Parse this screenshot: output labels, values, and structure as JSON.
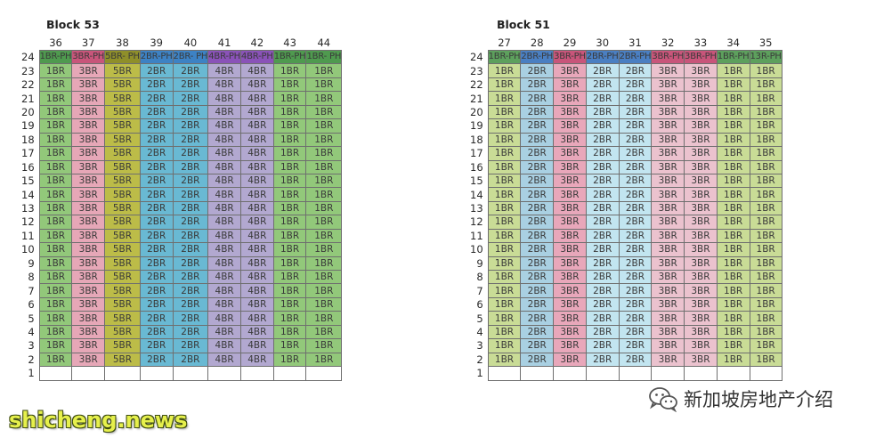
{
  "footer": {
    "site": "shicheng.news",
    "account": "新加坡房地产介绍",
    "logo_icon": "wechat-icon"
  },
  "floors": [
    24,
    23,
    22,
    21,
    20,
    19,
    18,
    17,
    16,
    15,
    14,
    13,
    12,
    11,
    10,
    9,
    8,
    7,
    6,
    5,
    4,
    3,
    2,
    1
  ],
  "blocks": [
    {
      "title": "Block 53",
      "stacks": [
        {
          "num": "36",
          "ph": "1BR-PH",
          "type": "1BR",
          "color": "#92c87a",
          "ph_color": "#4f9a4f"
        },
        {
          "num": "37",
          "ph": "3BR-PH",
          "type": "3BR",
          "color": "#e6a7b7",
          "ph_color": "#c8557a"
        },
        {
          "num": "38",
          "ph": "5BR- PH",
          "type": "5BR",
          "color": "#bcbc48",
          "ph_color": "#8f8f2a"
        },
        {
          "num": "39",
          "ph": "2BR-PH",
          "type": "2BR",
          "color": "#69b9d3",
          "ph_color": "#3d82c4"
        },
        {
          "num": "40",
          "ph": "2BR- PH",
          "type": "2BR",
          "color": "#69b9d3",
          "ph_color": "#3d82c4"
        },
        {
          "num": "41",
          "ph": "4BR-PH",
          "type": "4BR",
          "color": "#b2a8d0",
          "ph_color": "#8a52b8"
        },
        {
          "num": "42",
          "ph": "4BR-PH",
          "type": "4BR",
          "color": "#b2a8d0",
          "ph_color": "#8a52b8"
        },
        {
          "num": "43",
          "ph": "1BR-PH",
          "type": "1BR",
          "color": "#92c87a",
          "ph_color": "#4f9a4f"
        },
        {
          "num": "44",
          "ph": "1BR- PH",
          "type": "1BR",
          "color": "#92c87a",
          "ph_color": "#4f9a4f"
        }
      ]
    },
    {
      "title": "Block 51",
      "stacks": [
        {
          "num": "27",
          "ph": "1BR-PH",
          "type": "1BR",
          "color": "#c9dc96",
          "ph_color": "#5da05d"
        },
        {
          "num": "28",
          "ph": "2BR-PH",
          "type": "2BR",
          "color": "#a9d0e2",
          "ph_color": "#4a7fc2"
        },
        {
          "num": "29",
          "ph": "3BR-PH",
          "type": "3BR",
          "color": "#e8a7ba",
          "ph_color": "#c8557a"
        },
        {
          "num": "30",
          "ph": "2BR-PH",
          "type": "2BR",
          "color": "#c2e5f0",
          "ph_color": "#4a7fc2"
        },
        {
          "num": "31",
          "ph": "2BR-PH",
          "type": "2BR",
          "color": "#c2e5f0",
          "ph_color": "#4a7fc2"
        },
        {
          "num": "32",
          "ph": "3BR-PH",
          "type": "3BR",
          "color": "#ebc2ce",
          "ph_color": "#c8557a"
        },
        {
          "num": "33",
          "ph": "3BR-PH",
          "type": "3BR",
          "color": "#ebc2ce",
          "ph_color": "#c8557a"
        },
        {
          "num": "34",
          "ph": "1BR-PH",
          "type": "1BR",
          "color": "#c9dc96",
          "ph_color": "#5da05d"
        },
        {
          "num": "35",
          "ph": "13R-PH",
          "type": "1BR",
          "color": "#c9dc96",
          "ph_color": "#5da05d"
        }
      ]
    }
  ]
}
